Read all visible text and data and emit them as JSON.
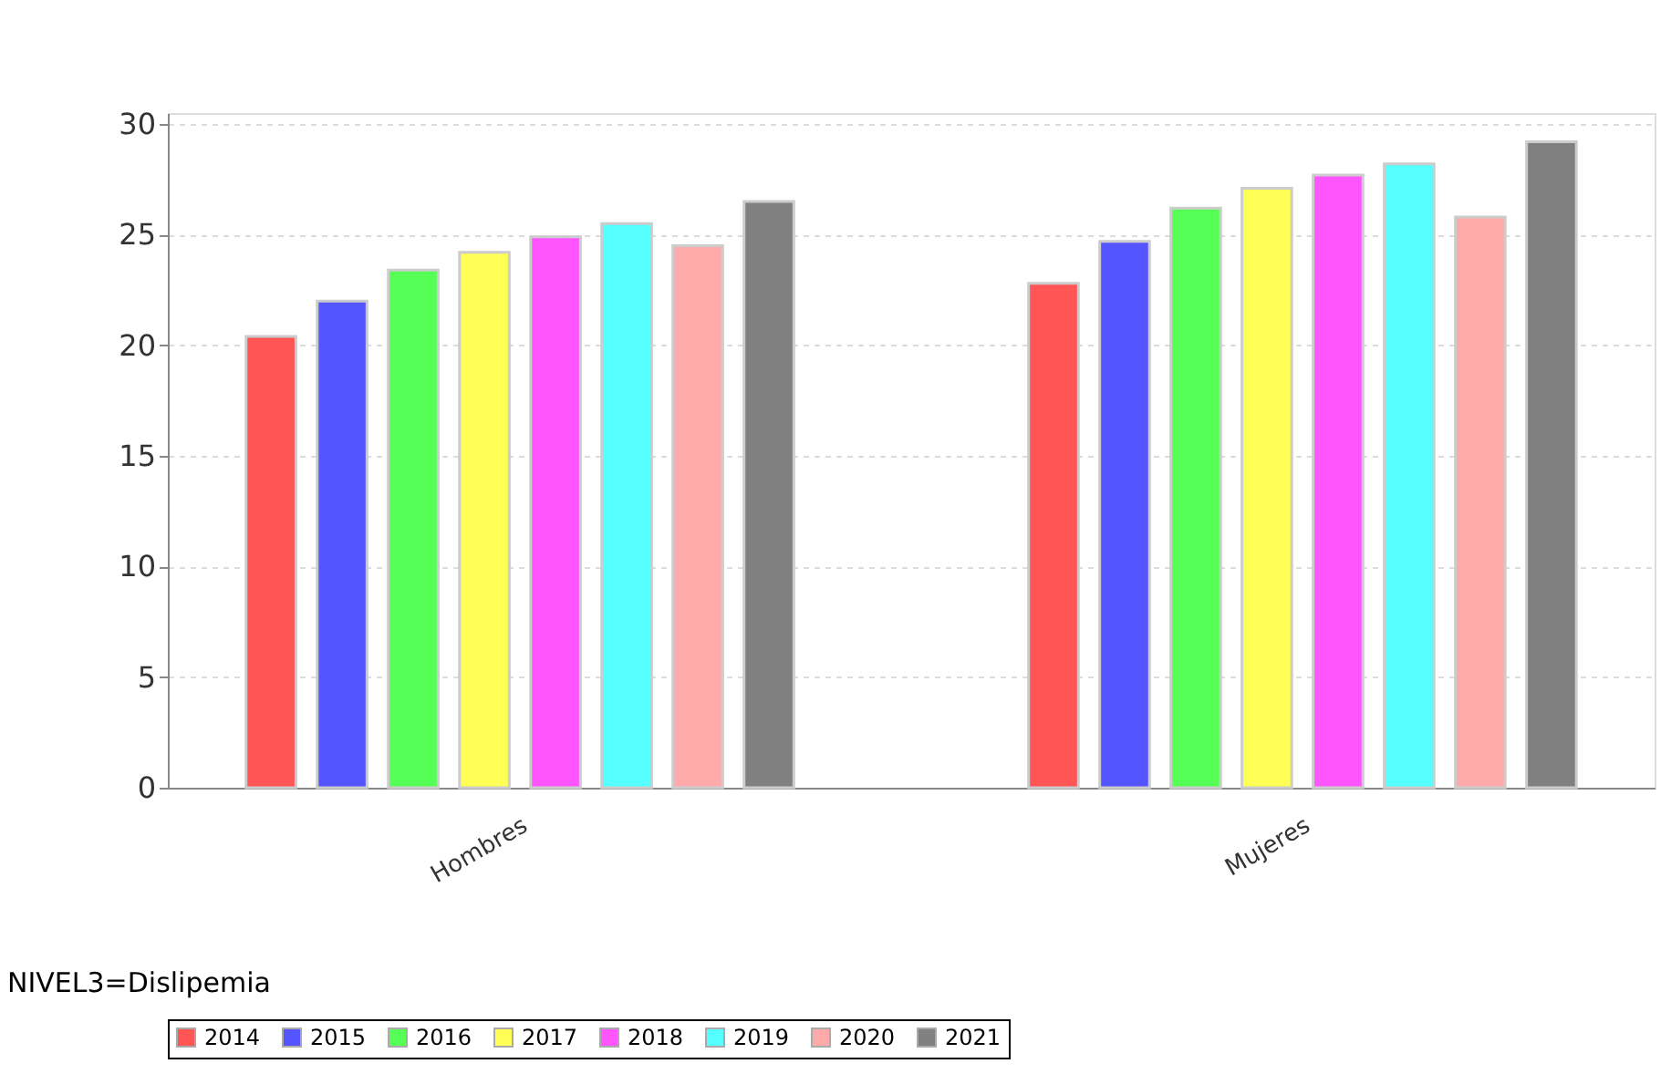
{
  "chart_data": {
    "type": "bar",
    "categories": [
      "Hombres",
      "Mujeres"
    ],
    "series": [
      {
        "name": "2014",
        "color": "#ff5555",
        "values": [
          20.4,
          22.8
        ]
      },
      {
        "name": "2015",
        "color": "#5555ff",
        "values": [
          22.0,
          24.7
        ]
      },
      {
        "name": "2016",
        "color": "#55ff55",
        "values": [
          23.4,
          26.2
        ]
      },
      {
        "name": "2017",
        "color": "#ffff55",
        "values": [
          24.2,
          27.1
        ]
      },
      {
        "name": "2018",
        "color": "#ff55ff",
        "values": [
          24.9,
          27.7
        ]
      },
      {
        "name": "2019",
        "color": "#55ffff",
        "values": [
          25.5,
          28.2
        ]
      },
      {
        "name": "2020",
        "color": "#ffaaaa",
        "values": [
          24.5,
          25.8
        ]
      },
      {
        "name": "2021",
        "color": "#808080",
        "values": [
          26.5,
          29.2
        ]
      }
    ],
    "ylim": [
      0,
      30.5
    ],
    "yticks": [
      0,
      5,
      10,
      15,
      20,
      25,
      30
    ],
    "grid": "y",
    "legend": "bottom",
    "annotations": [
      "NIVEL3=Dislipemia"
    ]
  }
}
